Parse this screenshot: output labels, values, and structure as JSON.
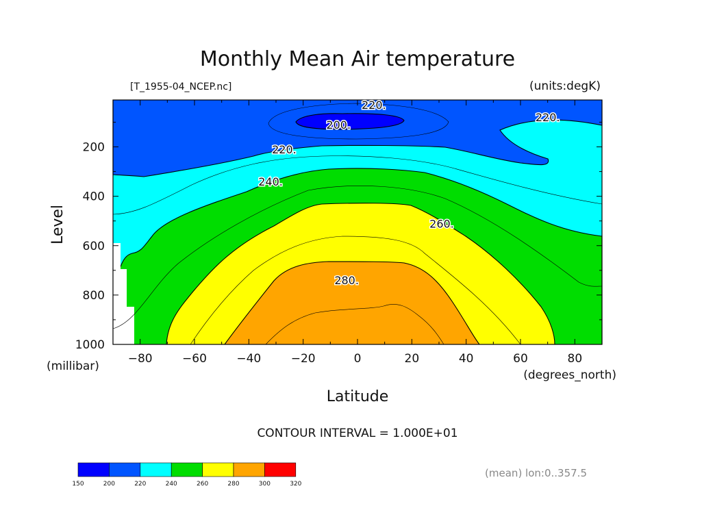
{
  "chart_data": {
    "type": "contour",
    "title": "Monthly Mean Air temperature",
    "subtitle_left": "[T_1955-04_NCEP.nc]",
    "units": "(units:degK)",
    "xlabel": "Latitude",
    "x_units": "(degrees_north)",
    "ylabel": "Level",
    "y_units": "(millibar)",
    "xlim": [
      -90,
      90
    ],
    "ylim": [
      1000,
      10
    ],
    "x_ticks": [
      -80,
      -60,
      -40,
      -20,
      0,
      20,
      40,
      60,
      80
    ],
    "x_tick_labels": [
      "−80",
      "−60",
      "−40",
      "−20",
      "0",
      "20",
      "40",
      "60",
      "80"
    ],
    "y_ticks": [
      200,
      400,
      600,
      800,
      1000
    ],
    "y_tick_labels": [
      "200",
      "400",
      "600",
      "800",
      "1000"
    ],
    "contour_interval": 10,
    "contour_interval_text": "CONTOUR INTERVAL = 1.000E+01",
    "contour_labels": [
      {
        "text": "220.",
        "lat": 6,
        "level": 30
      },
      {
        "text": "200.",
        "lat": -7,
        "level": 110
      },
      {
        "text": "220.",
        "lat": 70,
        "level": 80
      },
      {
        "text": "220.",
        "lat": -27,
        "level": 210
      },
      {
        "text": "240.",
        "lat": -32,
        "level": 340
      },
      {
        "text": "260.",
        "lat": 31,
        "level": 510
      },
      {
        "text": "280.",
        "lat": -4,
        "level": 740
      }
    ],
    "color_levels": [
      {
        "range": [
          150,
          200
        ],
        "color": "#0000ff"
      },
      {
        "range": [
          200,
          220
        ],
        "color": "#0055ff"
      },
      {
        "range": [
          220,
          240
        ],
        "color": "#00ffff"
      },
      {
        "range": [
          240,
          260
        ],
        "color": "#00dd00"
      },
      {
        "range": [
          260,
          280
        ],
        "color": "#ffff00"
      },
      {
        "range": [
          280,
          300
        ],
        "color": "#ffa500"
      },
      {
        "range": [
          300,
          320
        ],
        "color": "#ff0000"
      }
    ],
    "colorbar_labels": [
      "150",
      "200",
      "220",
      "240",
      "260",
      "280",
      "300",
      "320"
    ],
    "footer_note": "(mean) lon:0..357.5"
  }
}
